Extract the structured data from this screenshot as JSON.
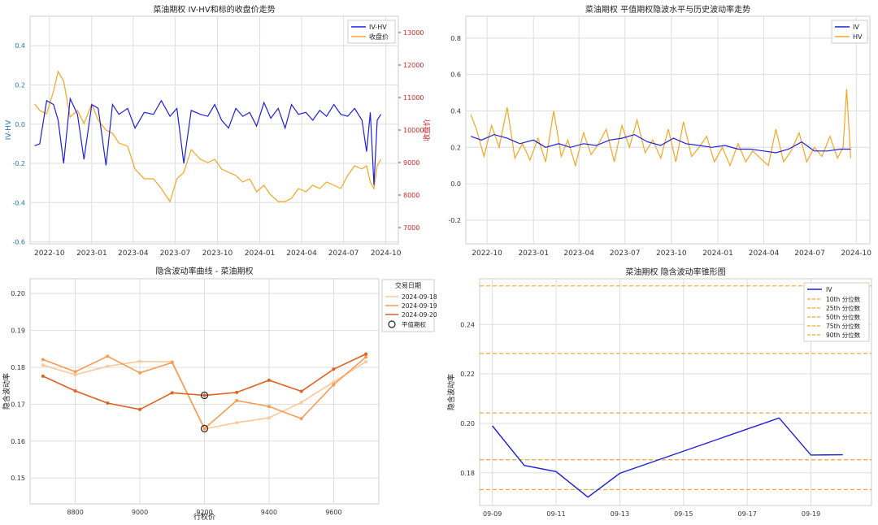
{
  "colors": {
    "blue": "#1f1fdd",
    "orange": "#f5a623",
    "red_axis": "#d62728",
    "left_axis_blue": "#1f77b4",
    "grid": "#dddddd",
    "c18": "#fdc79a",
    "c19": "#f79a52",
    "c20": "#e0601f",
    "q_line": "#f5a623"
  },
  "chart_data": [
    {
      "type": "line",
      "title": "菜油期权 IV-HV和标的收盘价走势",
      "xlabel": "",
      "ylabel": "IV-HV",
      "y2label": "收盘价",
      "xlim": [
        "2022-08-20",
        "2024-10-28"
      ],
      "ylim": [
        -0.61,
        0.55
      ],
      "y2lim": [
        6500,
        13500
      ],
      "xticks": [
        "2022-10",
        "2023-01",
        "2023-04",
        "2023-07",
        "2023-10",
        "2024-01",
        "2024-04",
        "2024-07",
        "2024-10"
      ],
      "yticks": [
        "-0.6",
        "-0.4",
        "-0.2",
        "0.0",
        "0.2",
        "0.4"
      ],
      "y2ticks": [
        "7000",
        "8000",
        "9000",
        "10000",
        "11000",
        "12000",
        "13000"
      ],
      "grid": true,
      "legend_position": "top-right",
      "series": [
        {
          "name": "IV-HV",
          "axis": "left",
          "color": "#1f1fdd",
          "x": [
            "2022-08-30",
            "2022-09-10",
            "2022-09-25",
            "2022-10-10",
            "2022-10-20",
            "2022-11-01",
            "2022-11-15",
            "2022-12-01",
            "2022-12-15",
            "2023-01-01",
            "2023-01-15",
            "2023-02-01",
            "2023-02-15",
            "2023-03-01",
            "2023-03-20",
            "2023-04-05",
            "2023-04-25",
            "2023-05-15",
            "2023-06-01",
            "2023-06-20",
            "2023-07-05",
            "2023-07-20",
            "2023-08-05",
            "2023-08-25",
            "2023-09-10",
            "2023-09-25",
            "2023-10-10",
            "2023-10-25",
            "2023-11-10",
            "2023-11-25",
            "2023-12-10",
            "2023-12-25",
            "2024-01-10",
            "2024-01-25",
            "2024-02-10",
            "2024-02-25",
            "2024-03-10",
            "2024-03-25",
            "2024-04-10",
            "2024-04-25",
            "2024-05-10",
            "2024-05-25",
            "2024-06-10",
            "2024-06-25",
            "2024-07-10",
            "2024-07-25",
            "2024-08-10",
            "2024-08-20",
            "2024-08-28",
            "2024-09-05",
            "2024-09-12",
            "2024-09-20"
          ],
          "values": [
            -0.11,
            -0.1,
            0.12,
            0.1,
            0.02,
            -0.2,
            0.13,
            0.05,
            -0.18,
            0.1,
            0.08,
            -0.21,
            0.1,
            0.05,
            0.08,
            -0.02,
            0.06,
            0.05,
            0.12,
            0.04,
            0.08,
            -0.2,
            0.07,
            0.05,
            0.04,
            0.1,
            0.02,
            -0.02,
            0.08,
            0.04,
            0.06,
            -0.01,
            0.11,
            0.03,
            0.08,
            -0.02,
            0.1,
            0.05,
            0.06,
            0.02,
            0.07,
            0.04,
            0.1,
            0.05,
            0.04,
            0.08,
            0.02,
            -0.14,
            0.06,
            -0.31,
            0.02,
            0.05
          ]
        },
        {
          "name": "收盘价",
          "axis": "right",
          "color": "#f5a623",
          "x": [
            "2022-08-30",
            "2022-09-10",
            "2022-09-25",
            "2022-10-10",
            "2022-10-20",
            "2022-11-01",
            "2022-11-15",
            "2022-12-01",
            "2022-12-15",
            "2023-01-01",
            "2023-01-15",
            "2023-02-01",
            "2023-02-15",
            "2023-03-01",
            "2023-03-20",
            "2023-04-05",
            "2023-04-25",
            "2023-05-15",
            "2023-06-01",
            "2023-06-20",
            "2023-07-05",
            "2023-07-20",
            "2023-08-05",
            "2023-08-25",
            "2023-09-10",
            "2023-09-25",
            "2023-10-10",
            "2023-10-25",
            "2023-11-10",
            "2023-11-25",
            "2023-12-10",
            "2023-12-25",
            "2024-01-10",
            "2024-01-25",
            "2024-02-10",
            "2024-02-25",
            "2024-03-10",
            "2024-03-25",
            "2024-04-10",
            "2024-04-25",
            "2024-05-10",
            "2024-05-25",
            "2024-06-10",
            "2024-06-25",
            "2024-07-10",
            "2024-07-25",
            "2024-08-10",
            "2024-08-20",
            "2024-08-28",
            "2024-09-05",
            "2024-09-12",
            "2024-09-20"
          ],
          "values": [
            10800,
            10600,
            10500,
            11200,
            11800,
            11500,
            10400,
            10600,
            10200,
            10800,
            10300,
            10000,
            9900,
            9600,
            9500,
            8800,
            8500,
            8500,
            8200,
            7800,
            8500,
            8700,
            9400,
            9100,
            9000,
            9100,
            8800,
            8700,
            8600,
            8400,
            8500,
            8100,
            8300,
            8000,
            7800,
            7800,
            7900,
            8200,
            8100,
            8300,
            8200,
            8400,
            8300,
            8200,
            8600,
            8900,
            8800,
            8900,
            8400,
            8200,
            8900,
            9100
          ]
        }
      ]
    },
    {
      "type": "line",
      "title": "菜油期权 平值期权隐波水平与历史波动率走势",
      "xlabel": "",
      "ylabel": "",
      "xlim": [
        "2022-08-20",
        "2024-10-28"
      ],
      "ylim": [
        -0.33,
        0.92
      ],
      "xticks": [
        "2022-10",
        "2023-01",
        "2023-04",
        "2023-07",
        "2023-10",
        "2024-01",
        "2024-04",
        "2024-07",
        "2024-10"
      ],
      "yticks": [
        "-0.2",
        "0.0",
        "0.2",
        "0.4",
        "0.6",
        "0.8"
      ],
      "grid": true,
      "legend_position": "top-right",
      "series": [
        {
          "name": "IV",
          "color": "#1f1fdd",
          "x": [
            "2022-08-30",
            "2022-09-20",
            "2022-10-15",
            "2022-11-10",
            "2022-12-05",
            "2023-01-01",
            "2023-01-25",
            "2023-02-20",
            "2023-03-15",
            "2023-04-10",
            "2023-05-05",
            "2023-06-01",
            "2023-06-25",
            "2023-07-20",
            "2023-08-15",
            "2023-09-10",
            "2023-10-05",
            "2023-10-30",
            "2023-11-25",
            "2023-12-20",
            "2024-01-15",
            "2024-02-10",
            "2024-03-05",
            "2024-04-01",
            "2024-04-25",
            "2024-05-20",
            "2024-06-15",
            "2024-07-10",
            "2024-08-05",
            "2024-08-30",
            "2024-09-20"
          ],
          "values": [
            0.26,
            0.24,
            0.27,
            0.25,
            0.22,
            0.24,
            0.2,
            0.22,
            0.2,
            0.22,
            0.21,
            0.24,
            0.25,
            0.27,
            0.23,
            0.21,
            0.25,
            0.22,
            0.21,
            0.2,
            0.21,
            0.19,
            0.19,
            0.18,
            0.17,
            0.19,
            0.23,
            0.18,
            0.18,
            0.19,
            0.19
          ]
        },
        {
          "name": "HV",
          "color": "#f5a623",
          "x": [
            "2022-08-30",
            "2022-09-10",
            "2022-09-25",
            "2022-10-10",
            "2022-10-25",
            "2022-11-10",
            "2022-11-25",
            "2022-12-10",
            "2022-12-25",
            "2023-01-10",
            "2023-01-25",
            "2023-02-10",
            "2023-02-25",
            "2023-03-10",
            "2023-03-25",
            "2023-04-10",
            "2023-04-25",
            "2023-05-10",
            "2023-05-25",
            "2023-06-10",
            "2023-06-25",
            "2023-07-10",
            "2023-07-25",
            "2023-08-10",
            "2023-08-25",
            "2023-09-10",
            "2023-09-25",
            "2023-10-10",
            "2023-10-25",
            "2023-11-10",
            "2023-11-25",
            "2023-12-10",
            "2023-12-25",
            "2024-01-10",
            "2024-01-25",
            "2024-02-10",
            "2024-02-25",
            "2024-03-10",
            "2024-03-25",
            "2024-04-10",
            "2024-04-25",
            "2024-05-10",
            "2024-05-25",
            "2024-06-10",
            "2024-06-25",
            "2024-07-10",
            "2024-07-25",
            "2024-08-10",
            "2024-08-25",
            "2024-09-05",
            "2024-09-12",
            "2024-09-20"
          ],
          "values": [
            0.38,
            0.3,
            0.15,
            0.32,
            0.2,
            0.42,
            0.14,
            0.22,
            0.13,
            0.25,
            0.12,
            0.4,
            0.15,
            0.24,
            0.1,
            0.28,
            0.16,
            0.22,
            0.3,
            0.12,
            0.32,
            0.2,
            0.35,
            0.17,
            0.24,
            0.14,
            0.3,
            0.12,
            0.34,
            0.15,
            0.2,
            0.26,
            0.12,
            0.2,
            0.1,
            0.22,
            0.12,
            0.18,
            0.14,
            0.1,
            0.3,
            0.12,
            0.18,
            0.28,
            0.12,
            0.2,
            0.15,
            0.26,
            0.14,
            0.2,
            0.52,
            0.14
          ]
        }
      ]
    },
    {
      "type": "line",
      "title": "隐含波动率曲线 - 菜油期权",
      "xlabel": "行权价",
      "ylabel": "隐含波动率",
      "xlim": [
        8660,
        9740
      ],
      "ylim": [
        0.143,
        0.204
      ],
      "xticks": [
        "8800",
        "9000",
        "9200",
        "9400",
        "9600"
      ],
      "yticks": [
        "0.15",
        "0.16",
        "0.17",
        "0.18",
        "0.19",
        "0.20"
      ],
      "grid": true,
      "legend_title": "交易日期",
      "legend_position": "top-right",
      "atm_label": "平值期权",
      "series": [
        {
          "name": "2024-09-18",
          "color": "#fdc79a",
          "x": [
            8700,
            8800,
            8900,
            9000,
            9100,
            9200,
            9300,
            9400,
            9500,
            9600,
            9700
          ],
          "values": [
            0.1806,
            0.178,
            0.1803,
            0.1816,
            0.1815,
            0.1633,
            0.165,
            0.1663,
            0.1705,
            0.176,
            0.1815
          ]
        },
        {
          "name": "2024-09-19",
          "color": "#f79a52",
          "x": [
            8700,
            8800,
            8900,
            9000,
            9100,
            9200,
            9300,
            9400,
            9500,
            9600,
            9700
          ],
          "values": [
            0.1821,
            0.1788,
            0.183,
            0.1785,
            0.1813,
            0.1634,
            0.171,
            0.1694,
            0.1661,
            0.1753,
            0.1828
          ]
        },
        {
          "name": "2024-09-20",
          "color": "#e0601f",
          "x": [
            8700,
            8800,
            8900,
            9000,
            9100,
            9200,
            9300,
            9400,
            9500,
            9600,
            9700
          ],
          "values": [
            0.1776,
            0.1736,
            0.1703,
            0.1686,
            0.1731,
            0.1724,
            0.1732,
            0.1765,
            0.1735,
            0.1795,
            0.1836
          ]
        }
      ],
      "atm_points": [
        {
          "x": 9200,
          "y": 0.1724
        },
        {
          "x": 9200,
          "y": 0.1634
        }
      ]
    },
    {
      "type": "line",
      "title": "菜油期权 隐含波动率锥形图",
      "xlabel": "",
      "ylabel": "隐含波动率",
      "xlim": [
        "2024-09-08.6",
        "2024-09-20.9"
      ],
      "ylim": [
        0.1668,
        0.2585
      ],
      "xticks": [
        "09-09",
        "09-11",
        "09-13",
        "09-15",
        "09-17",
        "09-19"
      ],
      "yticks": [
        "0.18",
        "0.20",
        "0.22",
        "0.24"
      ],
      "grid": true,
      "legend_position": "top-right",
      "series": [
        {
          "name": "IV",
          "color": "#1f1fdd",
          "x": [
            "2024-09-09",
            "2024-09-10",
            "2024-09-11",
            "2024-09-12",
            "2024-09-13",
            "2024-09-18",
            "2024-09-19",
            "2024-09-20"
          ],
          "values": [
            0.199,
            0.183,
            0.1805,
            0.1702,
            0.1798,
            0.2022,
            0.1872,
            0.1873
          ]
        }
      ],
      "quantiles": [
        {
          "name": "10th 分位数",
          "value": 0.1732
        },
        {
          "name": "25th 分位数",
          "value": 0.1853
        },
        {
          "name": "50th 分位数",
          "value": 0.2042
        },
        {
          "name": "75th 分位数",
          "value": 0.2283
        },
        {
          "name": "90th 分位数",
          "value": 0.2556
        }
      ]
    }
  ]
}
